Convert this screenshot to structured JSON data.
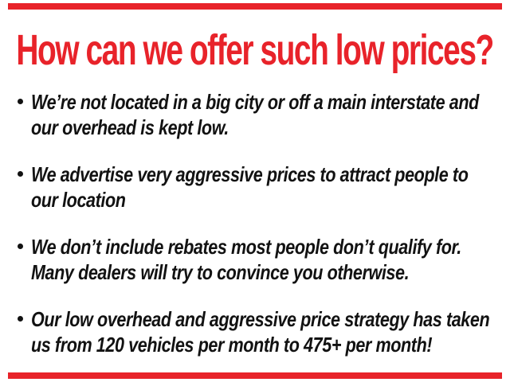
{
  "slide": {
    "title": "How can we offer such low prices?",
    "colors": {
      "accent_red": "#e8232a",
      "text_black": "#121212",
      "background": "#ffffff"
    },
    "bullets": [
      {
        "line1": "We’re not located in a big city or off a main interstate and",
        "line2": "our overhead is kept low."
      },
      {
        "line1": "We advertise very aggressive prices to attract people to",
        "line2": "our location"
      },
      {
        "line1": "We don’t include rebates most people don’t qualify for.",
        "line2": "Many dealers will try to convince you otherwise."
      },
      {
        "line1": "Our low overhead and aggressive price strategy has taken",
        "line2": "us from 120 vehicles per month to 475+ per month!"
      }
    ]
  }
}
